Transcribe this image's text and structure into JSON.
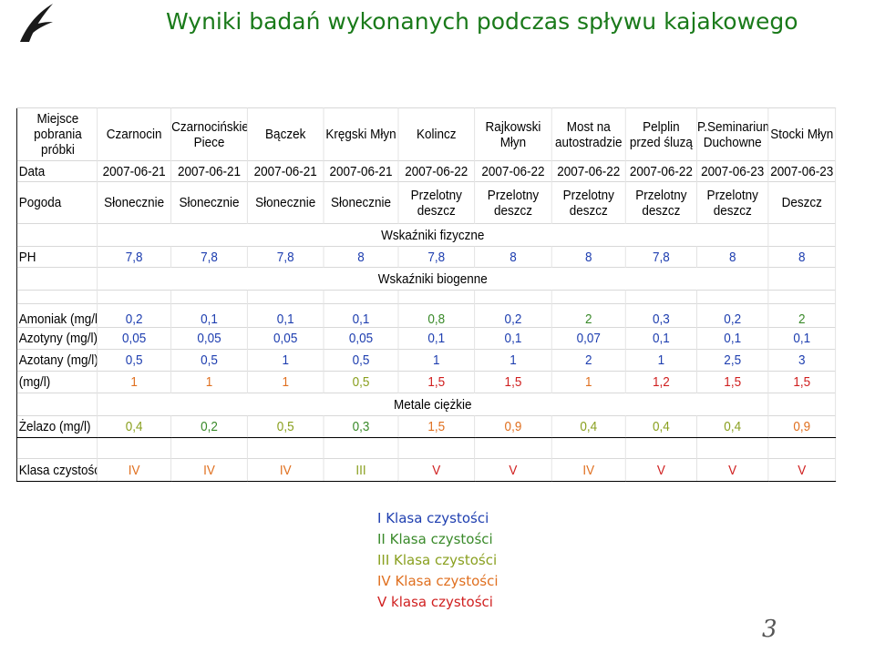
{
  "title": "Wyniki badań wykonanych podczas spływu kajakowego",
  "header": [
    "Miejsce pobrania próbki",
    "Czarnocin",
    "Czarnocińskie Piece",
    "Bączek",
    "Kręgski Młyn",
    "Kolincz",
    "Rajkowski Młyn",
    "Most na autostradzie",
    "Pelplin przed śluzą",
    "P.Seminarium Duchowne",
    "Stocki Młyn"
  ],
  "data_row": [
    "Data",
    "2007-06-21",
    "2007-06-21",
    "2007-06-21",
    "2007-06-21",
    "2007-06-22",
    "2007-06-22",
    "2007-06-22",
    "2007-06-22",
    "2007-06-23",
    "2007-06-23"
  ],
  "pogoda_row": [
    "Pogoda",
    "Słonecznie",
    "Słonecznie",
    "Słonecznie",
    "Słonecznie",
    "Przelotny deszcz",
    "Przelotny deszcz",
    "Przelotny deszcz",
    "Przelotny deszcz",
    "Przelotny deszcz",
    "Deszcz"
  ],
  "sections": {
    "fizyczne": "Wskaźniki fizyczne",
    "biogenne": "Wskaźniki biogenne",
    "metale": "Metale ciężkie"
  },
  "ph_row": [
    "PH",
    "7,8",
    "7,8",
    "7,8",
    "8",
    "7,8",
    "8",
    "8",
    "7,8",
    "8",
    "8"
  ],
  "amoniak_row": [
    "Amoniak (mg/l)",
    "0,2",
    "0,1",
    "0,1",
    "0,1",
    "0,8",
    "0,2",
    "2",
    "0,3",
    "0,2",
    "2"
  ],
  "azotyny_row": [
    "Azotyny (mg/l)",
    "0,05",
    "0,05",
    "0,05",
    "0,05",
    "0,1",
    "0,1",
    "0,07",
    "0,1",
    "0,1",
    "0,1"
  ],
  "azotany_row": [
    "Azotany (mg/l)",
    "0,5",
    "0,5",
    "1",
    "0,5",
    "1",
    "1",
    "2",
    "1",
    "2,5",
    "3"
  ],
  "fosforany_row": [
    "(mg/l)",
    "1",
    "1",
    "1",
    "0,5",
    "1,5",
    "1,5",
    "1",
    "1,2",
    "1,5",
    "1,5"
  ],
  "zelazo_row": [
    "Żelazo (mg/l)",
    "0,4",
    "0,2",
    "0,5",
    "0,3",
    "1,5",
    "0,9",
    "0,4",
    "0,4",
    "0,4",
    "0,9"
  ],
  "klasa_row": [
    "Klasa czystości",
    "IV",
    "IV",
    "IV",
    "III",
    "V",
    "V",
    "IV",
    "V",
    "V",
    "V"
  ],
  "legend": [
    "I Klasa czystości",
    "II Klasa czystości",
    "III Klasa czystości",
    "IV Klasa czystości",
    "V klasa czystości"
  ],
  "colors": {
    "title": "#1a7a1a",
    "class_I": "#1f3fb0",
    "class_II": "#3a8a2a",
    "class_III": "#8aa020",
    "class_IV": "#e07020",
    "class_V": "#d02020"
  },
  "page_number": "3"
}
